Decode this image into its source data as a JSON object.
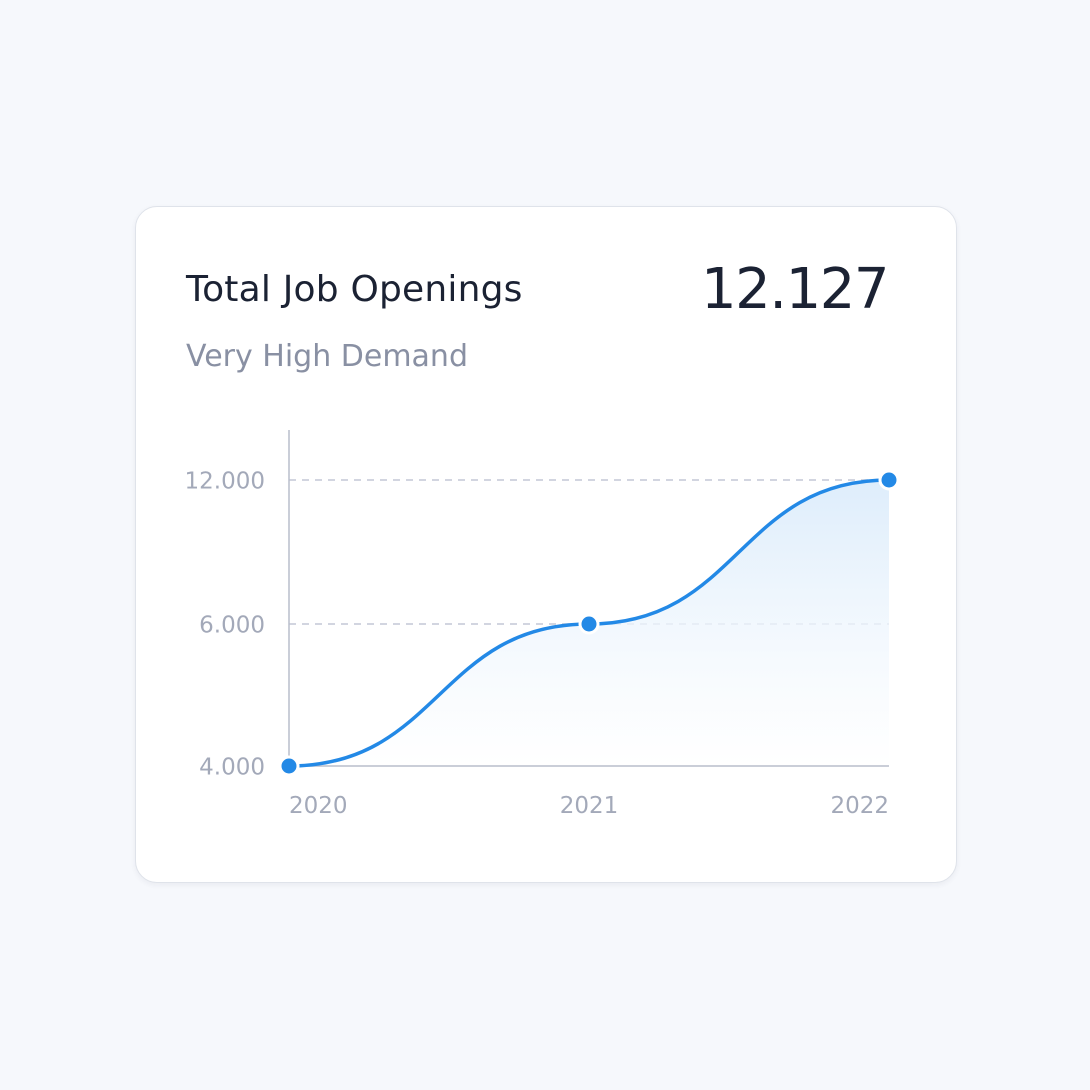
{
  "card": {
    "title": "Total Job Openings",
    "subtitle": "Very High Demand",
    "total_value": "12.127"
  },
  "colors": {
    "line": "#2389e6",
    "fill_top": "#dcecfb",
    "grid": "#c3c7d6",
    "axis": "#b9bdcc"
  },
  "chart_data": {
    "type": "area",
    "title": "",
    "xlabel": "",
    "ylabel": "",
    "x": [
      "2020",
      "2021",
      "2022"
    ],
    "values": [
      4000,
      6000,
      12000
    ],
    "y_ticks": [
      {
        "value": 4000,
        "label": "4.000"
      },
      {
        "value": 6000,
        "label": "6.000"
      },
      {
        "value": 12000,
        "label": "12.000"
      }
    ],
    "y_scale": "non-linear (ticks evenly spaced as shown)",
    "gridlines": "dashed, at 6.000 and 12.000",
    "markers": true
  }
}
